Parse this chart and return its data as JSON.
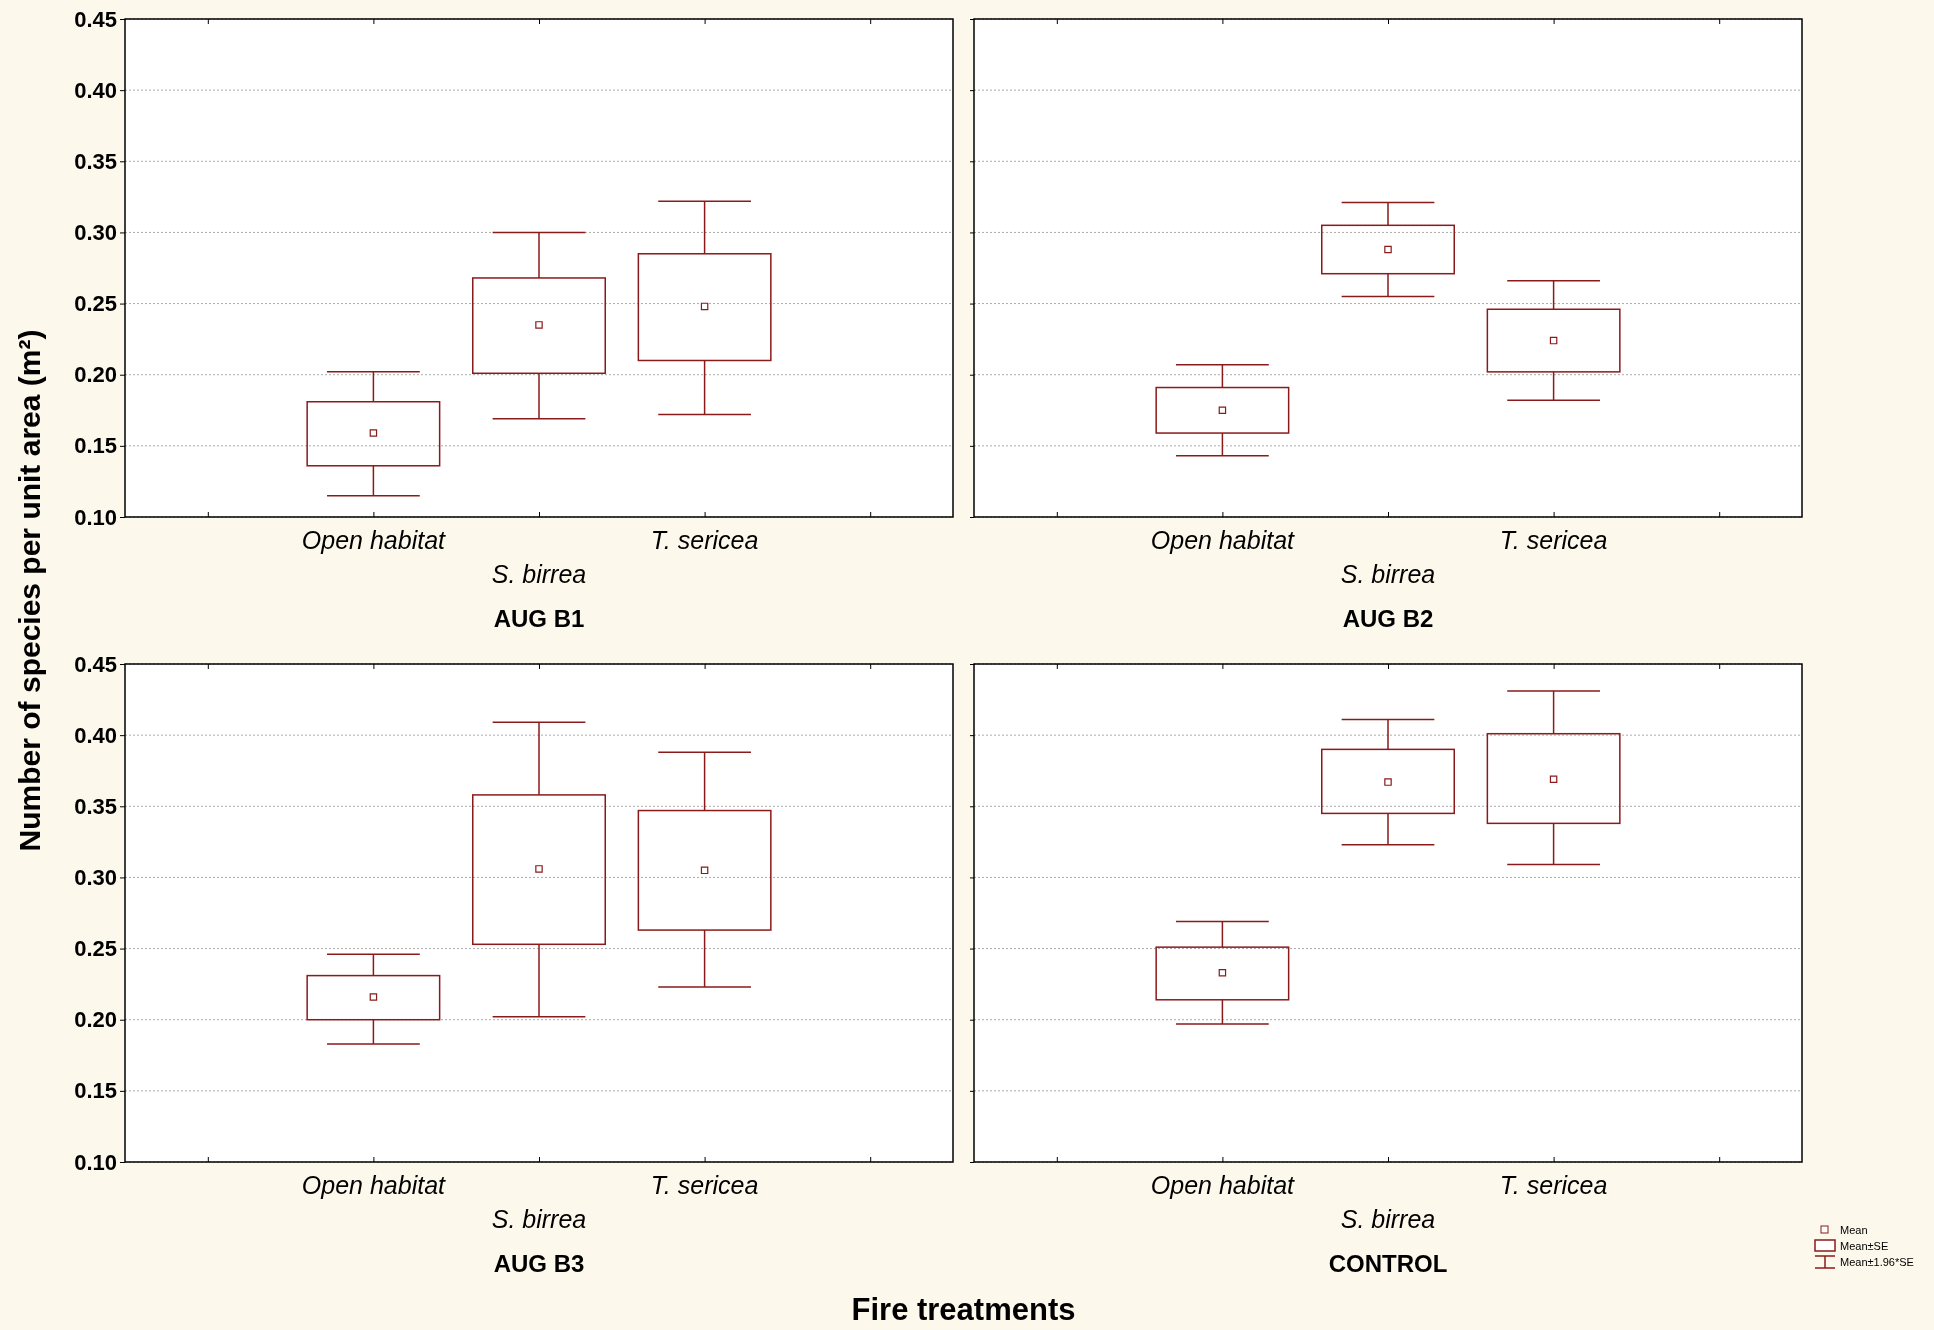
{
  "chart_data": [
    {
      "type": "box",
      "title": "AUG B1",
      "ylabel": "Number of species per unit area (m²)",
      "categories": [
        "Open habitat",
        "S. birrea",
        "T. sericea"
      ],
      "color": "#8b1a1a",
      "marker": "square",
      "grid": "y",
      "ylim": [
        0.1,
        0.45
      ],
      "yticks": [
        {
          "value": 0.1,
          "label": "0.10"
        },
        {
          "value": 0.15,
          "label": "0.15"
        },
        {
          "value": 0.2,
          "label": "0.20"
        },
        {
          "value": 0.25,
          "label": "0.25"
        },
        {
          "value": 0.3,
          "label": "0.30"
        },
        {
          "value": 0.35,
          "label": "0.35"
        },
        {
          "value": 0.4,
          "label": "0.40"
        },
        {
          "value": 0.45,
          "label": "0.45"
        }
      ],
      "boxes": [
        {
          "low": 0.115,
          "q1": 0.136,
          "median": 0.159,
          "q3": 0.181,
          "high": 0.202
        },
        {
          "low": 0.169,
          "q1": 0.201,
          "median": 0.235,
          "q3": 0.268,
          "high": 0.3
        },
        {
          "low": 0.172,
          "q1": 0.21,
          "median": 0.248,
          "q3": 0.285,
          "high": 0.322
        }
      ]
    },
    {
      "type": "box",
      "title": "AUG B2",
      "categories": [
        "Open habitat",
        "S. birrea",
        "T. sericea"
      ],
      "color": "#8b1a1a",
      "marker": "square",
      "grid": "y",
      "tick_labels": "x",
      "ylim": [
        0.1,
        0.45
      ],
      "yticks": [
        {
          "value": 0.1,
          "label": null
        },
        {
          "value": 0.15,
          "label": null
        },
        {
          "value": 0.2,
          "label": null
        },
        {
          "value": 0.25,
          "label": null
        },
        {
          "value": 0.3,
          "label": null
        },
        {
          "value": 0.35,
          "label": null
        },
        {
          "value": 0.4,
          "label": null
        },
        {
          "value": 0.45,
          "label": null
        }
      ],
      "boxes": [
        {
          "low": 0.143,
          "q1": 0.159,
          "median": 0.175,
          "q3": 0.191,
          "high": 0.207
        },
        {
          "low": 0.255,
          "q1": 0.271,
          "median": 0.288,
          "q3": 0.305,
          "high": 0.321
        },
        {
          "low": 0.182,
          "q1": 0.202,
          "median": 0.224,
          "q3": 0.246,
          "high": 0.266
        }
      ]
    },
    {
      "type": "box",
      "title": "AUG B3",
      "xlabel": "Fire treatments",
      "categories": [
        "Open habitat",
        "S. birrea",
        "T. sericea"
      ],
      "color": "#8b1a1a",
      "marker": "square",
      "grid": "y",
      "ylim": [
        0.1,
        0.45
      ],
      "yticks": [
        {
          "value": 0.1,
          "label": "0.10"
        },
        {
          "value": 0.15,
          "label": "0.15"
        },
        {
          "value": 0.2,
          "label": "0.20"
        },
        {
          "value": 0.25,
          "label": "0.25"
        },
        {
          "value": 0.3,
          "label": "0.30"
        },
        {
          "value": 0.35,
          "label": "0.35"
        },
        {
          "value": 0.4,
          "label": "0.40"
        },
        {
          "value": 0.45,
          "label": "0.45"
        }
      ],
      "boxes": [
        {
          "low": 0.183,
          "q1": 0.2,
          "median": 0.216,
          "q3": 0.231,
          "high": 0.246
        },
        {
          "low": 0.202,
          "q1": 0.253,
          "median": 0.306,
          "q3": 0.358,
          "high": 0.409
        },
        {
          "low": 0.223,
          "q1": 0.263,
          "median": 0.305,
          "q3": 0.347,
          "high": 0.388
        }
      ]
    },
    {
      "type": "box",
      "title": "CONTROL",
      "categories": [
        "Open habitat",
        "S. birrea",
        "T. sericea"
      ],
      "color": "#8b1a1a",
      "marker": "square",
      "grid": "y",
      "tick_labels": "x",
      "ylim": [
        0.1,
        0.45
      ],
      "yticks": [
        {
          "value": 0.1,
          "label": null
        },
        {
          "value": 0.15,
          "label": null
        },
        {
          "value": 0.2,
          "label": null
        },
        {
          "value": 0.25,
          "label": null
        },
        {
          "value": 0.3,
          "label": null
        },
        {
          "value": 0.35,
          "label": null
        },
        {
          "value": 0.4,
          "label": null
        },
        {
          "value": 0.45,
          "label": null
        }
      ],
      "annotations": [
        "Mean",
        "Mean±SE",
        "Mean±1.96*SE"
      ],
      "boxes": [
        {
          "low": 0.197,
          "q1": 0.214,
          "median": 0.233,
          "q3": 0.251,
          "high": 0.269
        },
        {
          "low": 0.323,
          "q1": 0.345,
          "median": 0.367,
          "q3": 0.39,
          "high": 0.411
        },
        {
          "low": 0.309,
          "q1": 0.338,
          "median": 0.369,
          "q3": 0.401,
          "high": 0.431
        }
      ]
    }
  ]
}
